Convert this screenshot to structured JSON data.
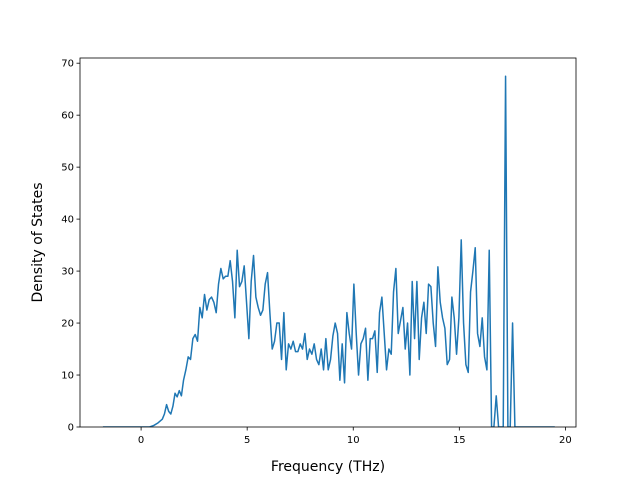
{
  "chart_data": {
    "type": "line",
    "x_label": "Frequency (THz)",
    "y_label": "Density of States",
    "xlim": [
      -2.88,
      20.5
    ],
    "ylim": [
      0,
      71
    ],
    "xticks": [
      0,
      5,
      10,
      15,
      20
    ],
    "yticks": [
      0,
      10,
      20,
      30,
      40,
      50,
      60,
      70
    ],
    "grid": false,
    "series": [
      {
        "color": "#1f77b4",
        "x": [
          -1.8,
          0.0,
          0.4,
          0.6,
          0.8,
          1.0,
          1.1,
          1.2,
          1.3,
          1.4,
          1.5,
          1.6,
          1.7,
          1.8,
          1.9,
          2.0,
          2.11,
          2.22,
          2.33,
          2.44,
          2.55,
          2.66,
          2.77,
          2.88,
          2.99,
          3.1,
          3.21,
          3.32,
          3.43,
          3.54,
          3.65,
          3.76,
          3.87,
          3.98,
          4.09,
          4.2,
          4.31,
          4.42,
          4.53,
          4.64,
          4.75,
          4.86,
          4.97,
          5.08,
          5.19,
          5.3,
          5.41,
          5.52,
          5.63,
          5.74,
          5.85,
          5.96,
          6.07,
          6.18,
          6.29,
          6.4,
          6.51,
          6.62,
          6.73,
          6.84,
          6.95,
          7.06,
          7.17,
          7.28,
          7.39,
          7.5,
          7.61,
          7.72,
          7.83,
          7.94,
          8.05,
          8.16,
          8.27,
          8.38,
          8.49,
          8.6,
          8.71,
          8.82,
          8.93,
          9.04,
          9.15,
          9.26,
          9.37,
          9.48,
          9.59,
          9.7,
          9.81,
          9.92,
          10.03,
          10.14,
          10.25,
          10.36,
          10.47,
          10.58,
          10.69,
          10.8,
          10.91,
          11.02,
          11.13,
          11.24,
          11.35,
          11.46,
          11.57,
          11.68,
          11.79,
          11.9,
          12.01,
          12.12,
          12.23,
          12.34,
          12.45,
          12.56,
          12.67,
          12.78,
          12.89,
          13.0,
          13.11,
          13.22,
          13.33,
          13.44,
          13.55,
          13.66,
          13.77,
          13.88,
          13.99,
          14.1,
          14.21,
          14.32,
          14.43,
          14.54,
          14.65,
          14.76,
          14.87,
          14.98,
          15.09,
          15.2,
          15.31,
          15.42,
          15.53,
          15.64,
          15.75,
          15.86,
          15.97,
          16.08,
          16.19,
          16.3,
          16.41,
          16.52,
          16.63,
          16.74,
          16.85,
          16.96,
          17.07,
          17.18,
          17.29,
          17.4,
          17.51,
          17.62,
          19.5
        ],
        "values": [
          0,
          0,
          0,
          0.3,
          0.8,
          1.5,
          2.5,
          4.3,
          3,
          2.5,
          4,
          6.5,
          5.8,
          7,
          6,
          9,
          11,
          13.5,
          13,
          17,
          17.8,
          16.5,
          23,
          21,
          25.5,
          22.5,
          24.5,
          25,
          24,
          22,
          27.5,
          30.5,
          28.5,
          29,
          29,
          32,
          28,
          21,
          34,
          27,
          28,
          31,
          24,
          17,
          28,
          33,
          25,
          23,
          21.5,
          22.5,
          27.5,
          29.7,
          22,
          15,
          16.5,
          20,
          20,
          13,
          22,
          11,
          16,
          15,
          16.5,
          14.5,
          14.5,
          16,
          15,
          18,
          13,
          15,
          14,
          16,
          13,
          12,
          15,
          11,
          17,
          11,
          13,
          17.5,
          20,
          18,
          9,
          16,
          8.5,
          22,
          18,
          15,
          27.5,
          18,
          10,
          16,
          17,
          19,
          9,
          17,
          17,
          18.5,
          10.5,
          22,
          25,
          18,
          11,
          15,
          14,
          26,
          30.5,
          18,
          20.5,
          23,
          15,
          20,
          10,
          28,
          17,
          28,
          13,
          21,
          24,
          18,
          27.5,
          27,
          20,
          15.5,
          30.8,
          24,
          21,
          19,
          12,
          13,
          25,
          21,
          14,
          21,
          36,
          20,
          12,
          10.5,
          26,
          30,
          34.5,
          18,
          15.5,
          21,
          13.5,
          11,
          34,
          0,
          0,
          6,
          0,
          0,
          0,
          67.5,
          0,
          0,
          20,
          0,
          0
        ]
      }
    ]
  }
}
